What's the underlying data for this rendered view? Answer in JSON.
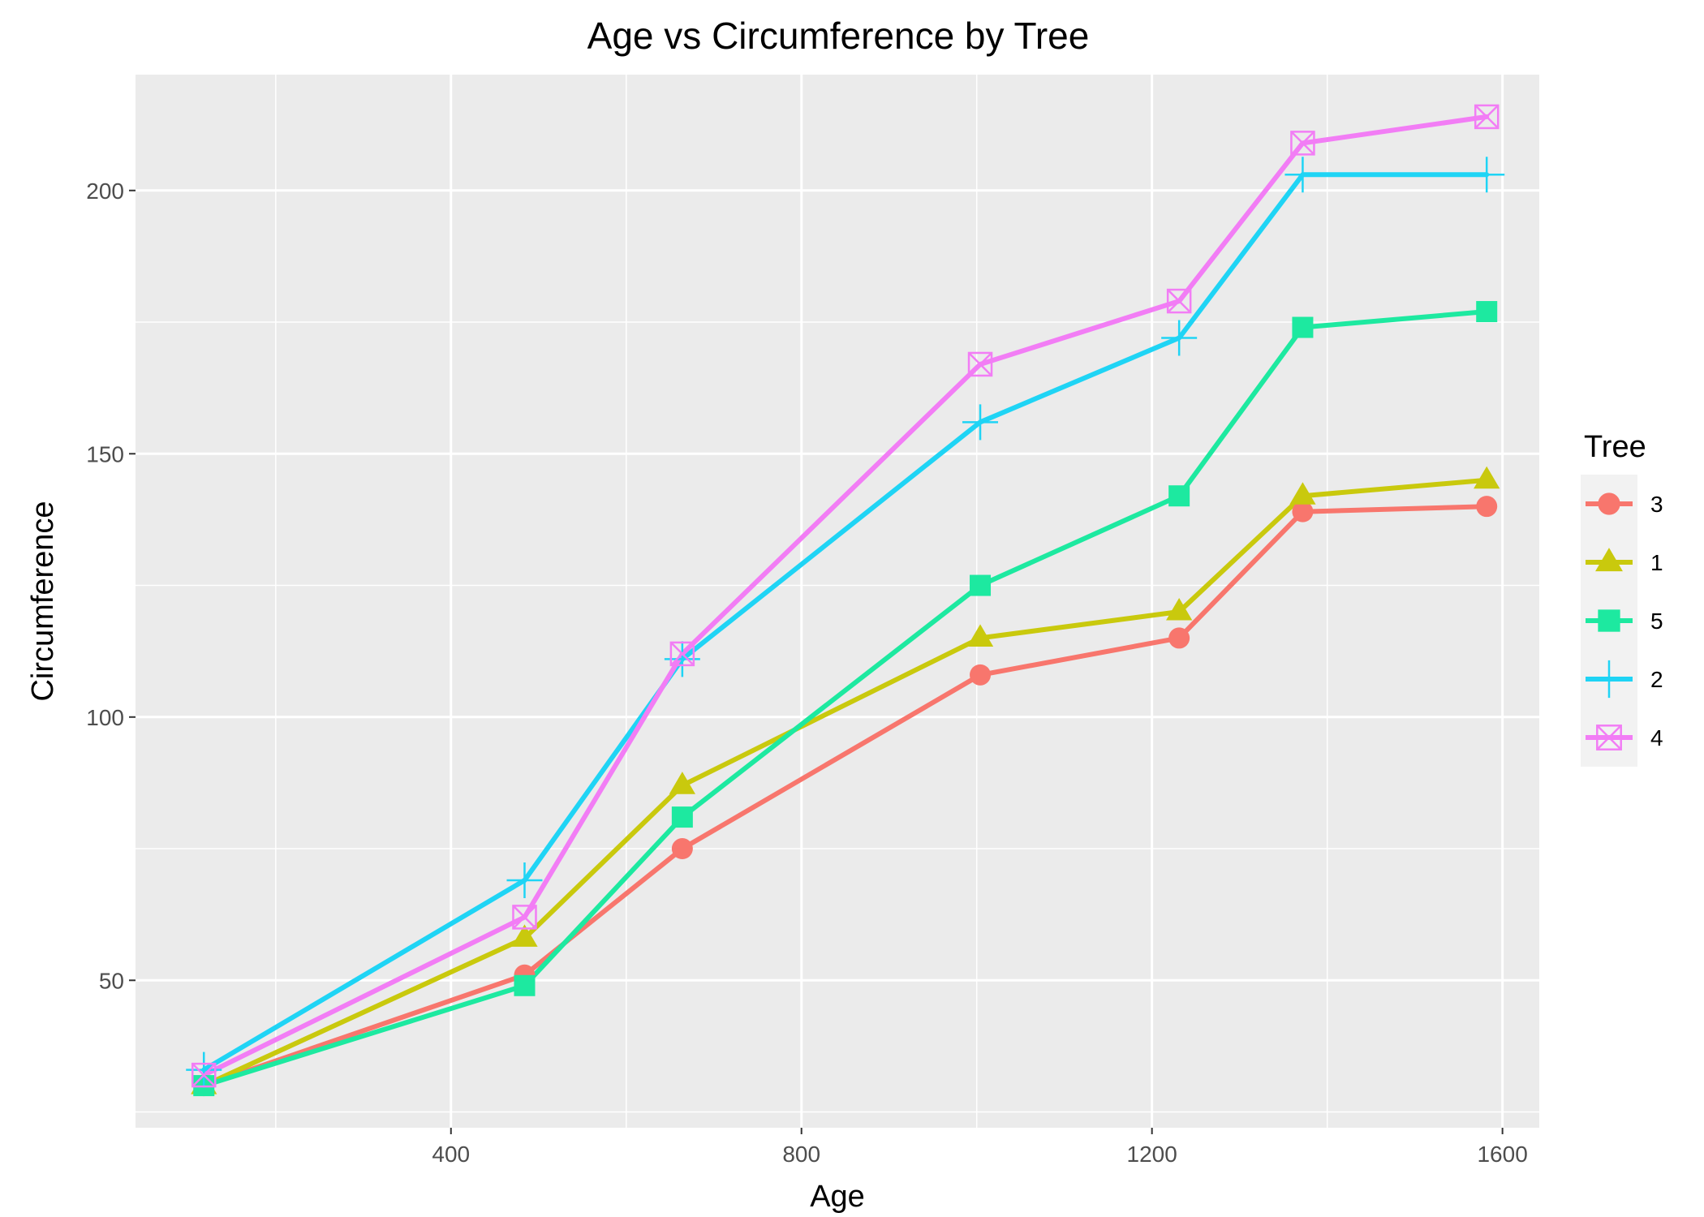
{
  "chart_data": {
    "type": "line",
    "title": "Age vs Circumference by Tree",
    "xlabel": "Age",
    "ylabel": "Circumference",
    "xlim": [
      40,
      1642
    ],
    "ylim": [
      22,
      222
    ],
    "x_ticks": [
      400,
      800,
      1200,
      1600
    ],
    "y_ticks": [
      50,
      100,
      150,
      200
    ],
    "x_minor": [
      200,
      600,
      1000,
      1400
    ],
    "y_minor": [
      25,
      75,
      125,
      175
    ],
    "x_tick_labels": [
      "400",
      "800",
      "1200",
      "1600"
    ],
    "y_tick_labels": [
      "50",
      "100",
      "150",
      "200"
    ],
    "grid": true,
    "background": "#ebebeb",
    "legend_title": "Tree",
    "legend_position": "right",
    "x": [
      118,
      484,
      664,
      1004,
      1231,
      1372,
      1582
    ],
    "series": [
      {
        "name": "3",
        "color": "#f8766d",
        "marker": "circle",
        "values": [
          30,
          51,
          75,
          108,
          115,
          139,
          140
        ]
      },
      {
        "name": "1",
        "color": "#c9c90d",
        "marker": "triangle",
        "values": [
          30,
          58,
          87,
          115,
          120,
          142,
          145
        ]
      },
      {
        "name": "5",
        "color": "#1de9a0",
        "marker": "square",
        "values": [
          30,
          49,
          81,
          125,
          142,
          174,
          177
        ]
      },
      {
        "name": "2",
        "color": "#1fd4f5",
        "marker": "plus",
        "values": [
          33,
          69,
          111,
          156,
          172,
          203,
          203
        ]
      },
      {
        "name": "4",
        "color": "#f27df5",
        "marker": "square-cross",
        "values": [
          32,
          62,
          112,
          167,
          179,
          209,
          214
        ]
      }
    ]
  }
}
